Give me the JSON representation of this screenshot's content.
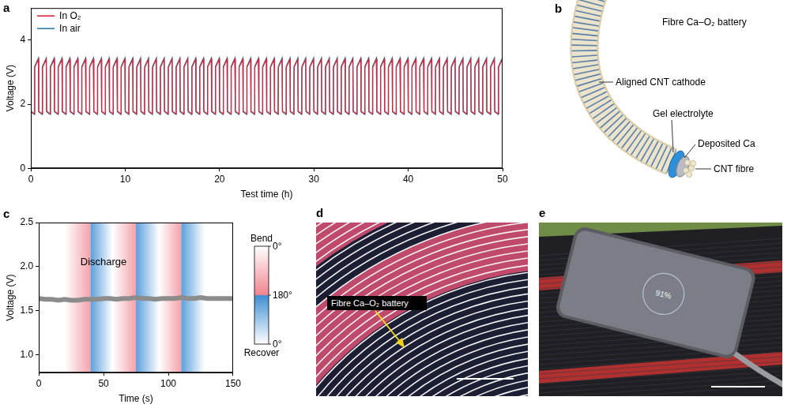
{
  "chart_data": [
    {
      "panel": "a",
      "type": "line",
      "x_label": "Test time (h)",
      "y_label": "Voltage (V)",
      "xlim": [
        0,
        50
      ],
      "xticks": [
        0,
        10,
        20,
        30,
        40,
        50
      ],
      "ylim": [
        0,
        5
      ],
      "yticks": [
        0,
        2,
        4
      ],
      "grid": false,
      "legend": "top-left",
      "x": [
        0,
        0.38,
        0.4,
        0.8,
        0.83,
        1.21,
        1.23,
        1.63,
        1.67,
        2.05,
        2.07,
        2.47,
        2.5,
        2.88,
        2.9,
        3.3,
        3.33,
        3.71,
        3.73,
        4.13,
        4.17,
        4.55,
        4.57,
        4.97,
        5,
        5.38,
        5.4,
        5.8,
        5.83,
        6.21,
        6.23,
        6.63,
        6.67,
        7.05,
        7.07,
        7.47,
        7.5,
        7.88,
        7.9,
        8.3,
        8.33,
        8.71,
        8.73,
        9.13,
        9.17,
        9.55,
        9.57,
        9.97,
        10,
        10.38,
        10.4,
        10.8,
        10.83,
        11.21,
        11.23,
        11.63,
        11.67,
        12.05,
        12.07,
        12.47,
        12.5,
        12.88,
        12.9,
        13.3,
        13.33,
        13.71,
        13.73,
        14.13,
        14.17,
        14.55,
        14.57,
        14.97,
        15,
        15.38,
        15.4,
        15.8,
        15.83,
        16.21,
        16.23,
        16.63,
        16.67,
        17.05,
        17.07,
        17.47,
        17.5,
        17.88,
        17.9,
        18.3,
        18.33,
        18.71,
        18.73,
        19.13,
        19.17,
        19.55,
        19.57,
        19.97,
        20,
        20.38,
        20.4,
        20.8,
        20.83,
        21.21,
        21.23,
        21.63,
        21.67,
        22.05,
        22.07,
        22.47,
        22.5,
        22.88,
        22.9,
        23.3,
        23.33,
        23.71,
        23.73,
        24.13,
        24.17,
        24.55,
        24.57,
        24.97,
        25,
        25.38,
        25.4,
        25.8,
        25.83,
        26.21,
        26.23,
        26.63,
        26.67,
        27.05,
        27.07,
        27.47,
        27.5,
        27.88,
        27.9,
        28.3,
        28.33,
        28.71,
        28.73,
        29.13,
        29.17,
        29.55,
        29.57,
        29.97,
        30,
        30.38,
        30.4,
        30.8,
        30.83,
        31.21,
        31.23,
        31.63,
        31.67,
        32.05,
        32.07,
        32.47,
        32.5,
        32.88,
        32.9,
        33.3,
        33.33,
        33.71,
        33.73,
        34.13,
        34.17,
        34.55,
        34.57,
        34.97,
        35,
        35.38,
        35.4,
        35.8,
        35.83,
        36.21,
        36.23,
        36.63,
        36.67,
        37.05,
        37.07,
        37.47,
        37.5,
        37.88,
        37.9,
        38.3,
        38.33,
        38.71,
        38.73,
        39.13,
        39.17,
        39.55,
        39.57,
        39.97,
        40,
        40.38,
        40.4,
        40.8,
        40.83,
        41.21,
        41.23,
        41.63,
        41.67,
        42.05,
        42.07,
        42.47,
        42.5,
        42.88,
        42.9,
        43.3,
        43.33,
        43.71,
        43.73,
        44.13,
        44.17,
        44.55,
        44.57,
        44.97,
        45,
        45.38,
        45.4,
        45.8,
        45.83,
        46.21,
        46.23,
        46.63,
        46.67,
        47.05,
        47.07,
        47.47,
        47.5,
        47.88,
        47.9,
        48.3,
        48.33,
        48.71,
        48.73,
        49.13,
        49.17,
        49.55,
        49.57,
        49.97,
        50
      ],
      "series": [
        {
          "name": "In O₂",
          "color": "#d7263d",
          "values": [
            1.78,
            1.7,
            3.15,
            3.4,
            1.78,
            1.7,
            3.15,
            3.4,
            1.78,
            1.7,
            3.15,
            3.4,
            1.78,
            1.7,
            3.15,
            3.4,
            1.78,
            1.7,
            3.15,
            3.4,
            1.78,
            1.7,
            3.15,
            3.4,
            1.78,
            1.7,
            3.15,
            3.4,
            1.78,
            1.7,
            3.15,
            3.4,
            1.78,
            1.7,
            3.15,
            3.4,
            1.78,
            1.7,
            3.15,
            3.4,
            1.78,
            1.7,
            3.15,
            3.4,
            1.78,
            1.7,
            3.15,
            3.4,
            1.78,
            1.7,
            3.15,
            3.4,
            1.78,
            1.7,
            3.15,
            3.4,
            1.78,
            1.7,
            3.15,
            3.4,
            1.78,
            1.7,
            3.15,
            3.4,
            1.78,
            1.7,
            3.15,
            3.4,
            1.78,
            1.7,
            3.15,
            3.4,
            1.78,
            1.7,
            3.15,
            3.4,
            1.78,
            1.7,
            3.15,
            3.4,
            1.78,
            1.7,
            3.15,
            3.4,
            1.78,
            1.7,
            3.15,
            3.4,
            1.78,
            1.7,
            3.15,
            3.4,
            1.78,
            1.7,
            3.15,
            3.4,
            1.78,
            1.7,
            3.15,
            3.4,
            1.78,
            1.7,
            3.15,
            3.4,
            1.78,
            1.7,
            3.15,
            3.4,
            1.78,
            1.7,
            3.15,
            3.4,
            1.78,
            1.7,
            3.15,
            3.4,
            1.78,
            1.7,
            3.15,
            3.4,
            1.78,
            1.7,
            3.15,
            3.4,
            1.78,
            1.7,
            3.15,
            3.4,
            1.78,
            1.7,
            3.15,
            3.4,
            1.78,
            1.7,
            3.15,
            3.4,
            1.78,
            1.7,
            3.15,
            3.4,
            1.78,
            1.7,
            3.15,
            3.4,
            1.78,
            1.7,
            3.15,
            3.4,
            1.78,
            1.7,
            3.15,
            3.4,
            1.78,
            1.7,
            3.15,
            3.4,
            1.78,
            1.7,
            3.15,
            3.4,
            1.78,
            1.7,
            3.15,
            3.4,
            1.78,
            1.7,
            3.15,
            3.4,
            1.78,
            1.7,
            3.15,
            3.4,
            1.78,
            1.7,
            3.15,
            3.4,
            1.78,
            1.7,
            3.15,
            3.4,
            1.78,
            1.7,
            3.15,
            3.4,
            1.78,
            1.7,
            3.15,
            3.4,
            1.78,
            1.7,
            3.15,
            3.4,
            1.78,
            1.7,
            3.15,
            3.4,
            1.78,
            1.7,
            3.15,
            3.4,
            1.78,
            1.7,
            3.15,
            3.4,
            1.78,
            1.7,
            3.15,
            3.4,
            1.78,
            1.7,
            3.15,
            3.4,
            1.78,
            1.7,
            3.15,
            3.4,
            1.78,
            1.7,
            3.15,
            3.4,
            1.78,
            1.7,
            3.15,
            3.4,
            1.78,
            1.7,
            3.15,
            3.4,
            1.78,
            1.7,
            3.15,
            3.4,
            1.78,
            1.7,
            3.15,
            3.4,
            1.78,
            1.7,
            3.15,
            3.4,
            1.78
          ]
        },
        {
          "name": "In air",
          "color": "#2e7d9a",
          "values": [
            1.76,
            1.68,
            3.18,
            3.44,
            1.76,
            1.68,
            3.18,
            3.44,
            1.76,
            1.68,
            3.18,
            3.44,
            1.76,
            1.68,
            3.18,
            3.44,
            1.76,
            1.68,
            3.18,
            3.44,
            1.76,
            1.68,
            3.18,
            3.44,
            1.76,
            1.68,
            3.18,
            3.44,
            1.76,
            1.68,
            3.18,
            3.44,
            1.76,
            1.68,
            3.18,
            3.44,
            1.76,
            1.68,
            3.18,
            3.44,
            1.76,
            1.68,
            3.18,
            3.44,
            1.76,
            1.68,
            3.18,
            3.44,
            1.76,
            1.68,
            3.18,
            3.44,
            1.76,
            1.68,
            3.18,
            3.44,
            1.76,
            1.68,
            3.18,
            3.44,
            1.76,
            1.68,
            3.18,
            3.44,
            1.76,
            1.68,
            3.18,
            3.44,
            1.76,
            1.68,
            3.18,
            3.44,
            1.76,
            1.68,
            3.18,
            3.44,
            1.76,
            1.68,
            3.18,
            3.44,
            1.76,
            1.68,
            3.18,
            3.44,
            1.76,
            1.68,
            3.18,
            3.44,
            1.76,
            1.68,
            3.18,
            3.44,
            1.76,
            1.68,
            3.18,
            3.44,
            1.76,
            1.68,
            3.18,
            3.44,
            1.76,
            1.68,
            3.18,
            3.44,
            1.76,
            1.68,
            3.18,
            3.44,
            1.76,
            1.68,
            3.18,
            3.44,
            1.76,
            1.68,
            3.18,
            3.44,
            1.76,
            1.68,
            3.18,
            3.44,
            1.76,
            1.68,
            3.18,
            3.44,
            1.76,
            1.68,
            3.18,
            3.44,
            1.76,
            1.68,
            3.18,
            3.44,
            1.76,
            1.68,
            3.18,
            3.44,
            1.76,
            1.68,
            3.18,
            3.44,
            1.76,
            1.68,
            3.18,
            3.44,
            1.76,
            1.68,
            3.18,
            3.44,
            1.76,
            1.68,
            3.18,
            3.44,
            1.76,
            1.68,
            3.18,
            3.44,
            1.76,
            1.68,
            3.18,
            3.44,
            1.76,
            1.68,
            3.18,
            3.44,
            1.76,
            1.68,
            3.18,
            3.44,
            1.76,
            1.68,
            3.18,
            3.44,
            1.76,
            1.68,
            3.18,
            3.44,
            1.76,
            1.68,
            3.18,
            3.44,
            1.76,
            1.68,
            3.18,
            3.44,
            1.76,
            1.68,
            3.18,
            3.44,
            1.76,
            1.68,
            3.18,
            3.44,
            1.76,
            1.68,
            3.18,
            3.44,
            1.76,
            1.68,
            3.18,
            3.44,
            1.76,
            1.68,
            3.18,
            3.44,
            1.76,
            1.68,
            3.18,
            3.44,
            1.76,
            1.68,
            3.18,
            3.44,
            1.76,
            1.68,
            3.18,
            3.44,
            1.76,
            1.68,
            3.18,
            3.44,
            1.76,
            1.68,
            3.18,
            3.44,
            1.76,
            1.68,
            3.18,
            3.44,
            1.76,
            1.68,
            3.18,
            3.44,
            1.76,
            1.68,
            3.18,
            3.44,
            1.76,
            1.68,
            3.18,
            3.44,
            1.76
          ]
        }
      ]
    },
    {
      "panel": "c",
      "type": "line",
      "x_label": "Time (s)",
      "y_label": "Voltage (V)",
      "xlim": [
        0,
        150
      ],
      "xticks": [
        0,
        50,
        100,
        150
      ],
      "ylim": [
        0.8,
        2.5
      ],
      "yticks": [
        {
          "value": 1,
          "label": "1.0"
        },
        {
          "value": 1.5,
          "label": "1.5"
        },
        {
          "value": 2,
          "label": "2.0"
        },
        {
          "value": 2.5,
          "label": "2.5"
        }
      ],
      "grid": false,
      "annotations": [
        {
          "text": "Discharge",
          "x": 50,
          "y": 2.05
        }
      ],
      "bend_intervals": [
        [
          20,
          40
        ],
        [
          57,
          75
        ],
        [
          93,
          110
        ]
      ],
      "recover_intervals": [
        [
          40,
          57
        ],
        [
          75,
          93
        ],
        [
          110,
          128
        ]
      ],
      "colorbar": {
        "top_label": "Bend",
        "bottom_label": "Recover",
        "labels": [
          "0°",
          "180°",
          "0°"
        ]
      },
      "x": [
        0,
        5,
        10,
        15,
        20,
        25,
        30,
        35,
        40,
        45,
        50,
        55,
        60,
        65,
        70,
        75,
        80,
        85,
        90,
        95,
        100,
        105,
        110,
        115,
        120,
        125,
        130,
        135,
        140,
        145,
        150
      ],
      "series": [
        {
          "color": "#8c8c8c",
          "values": [
            1.64,
            1.63,
            1.63,
            1.62,
            1.63,
            1.62,
            1.62,
            1.63,
            1.63,
            1.63,
            1.64,
            1.64,
            1.63,
            1.64,
            1.64,
            1.65,
            1.64,
            1.64,
            1.63,
            1.64,
            1.64,
            1.64,
            1.65,
            1.64,
            1.64,
            1.65,
            1.64,
            1.64,
            1.64,
            1.64,
            1.64
          ]
        }
      ]
    }
  ],
  "diagram": {
    "panel": "b",
    "title": "Fibre Ca–O₂ battery",
    "parts": [
      "Aligned CNT cathode",
      "Gel electrolyte",
      "Deposited Ca",
      "CNT fibre"
    ]
  },
  "photos": [
    {
      "panel": "d",
      "label": "Fibre Ca–O₂ battery"
    },
    {
      "panel": "e",
      "screen_text": "91%"
    }
  ]
}
